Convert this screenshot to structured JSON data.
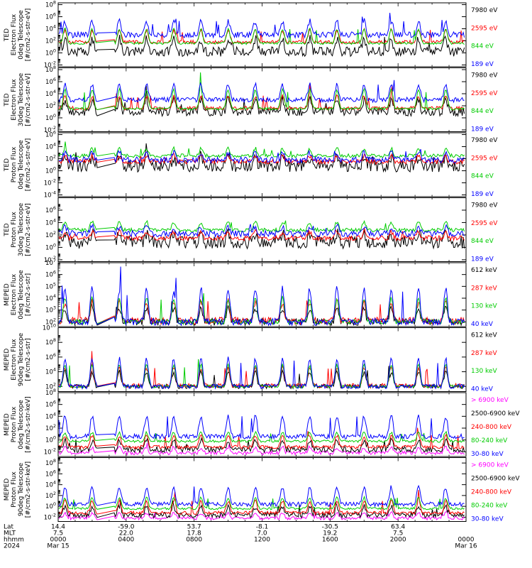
{
  "chart_data": [
    {
      "type": "line",
      "ylabel_lines": [
        "TED",
        "Electron Flux",
        "0deg Telescope",
        "[#/cm2-s-str-eV]"
      ],
      "yscale": "log",
      "ytick_exponents": [
        -2,
        0,
        2,
        4,
        6,
        8
      ],
      "ylim_exp": [
        -2.3,
        8.3
      ],
      "series": [
        {
          "name": "7980 eV",
          "color": "#000000",
          "base": 0.2,
          "amp": 2.2,
          "noise": 0.8
        },
        {
          "name": "2595 eV",
          "color": "#ff0000",
          "base": 1.8,
          "amp": 2.0,
          "noise": 0.3
        },
        {
          "name": "844 eV",
          "color": "#00cc00",
          "base": 1.6,
          "amp": 2.4,
          "noise": 0.2
        },
        {
          "name": "189 eV",
          "color": "#0000ff",
          "base": 3.0,
          "amp": 2.3,
          "noise": 0.5
        }
      ]
    },
    {
      "type": "line",
      "ylabel_lines": [
        "TED",
        "Electron Flux",
        "30deg Telescope",
        "[#/cm2-s-str-eV]"
      ],
      "yscale": "log",
      "ytick_exponents": [
        -2,
        0,
        2,
        4,
        6,
        8
      ],
      "ylim_exp": [
        -2.3,
        8.3
      ],
      "series": [
        {
          "name": "7980 eV",
          "color": "#000000",
          "base": 1.0,
          "amp": 2.0,
          "noise": 0.7
        },
        {
          "name": "2595 eV",
          "color": "#ff0000",
          "base": 1.6,
          "amp": 2.0,
          "noise": 0.3
        },
        {
          "name": "844 eV",
          "color": "#00cc00",
          "base": 1.5,
          "amp": 3.2,
          "noise": 0.2
        },
        {
          "name": "189 eV",
          "color": "#0000ff",
          "base": 3.0,
          "amp": 2.5,
          "noise": 0.4
        }
      ]
    },
    {
      "type": "line",
      "ylabel_lines": [
        "TED",
        "Proton Flux",
        "0deg Telescope",
        "[#/cm2-s-str-eV]"
      ],
      "yscale": "log",
      "ytick_exponents": [
        -4,
        -2,
        0,
        2,
        4,
        6
      ],
      "ylim_exp": [
        -4.3,
        6.3
      ],
      "series": [
        {
          "name": "7980 eV",
          "color": "#000000",
          "base": 0.8,
          "amp": 1.5,
          "noise": 1.0
        },
        {
          "name": "2595 eV",
          "color": "#ff0000",
          "base": 1.5,
          "amp": 1.0,
          "noise": 0.4
        },
        {
          "name": "844 eV",
          "color": "#00cc00",
          "base": 2.5,
          "amp": 1.2,
          "noise": 0.3
        },
        {
          "name": "189 eV",
          "color": "#0000ff",
          "base": 1.8,
          "amp": 1.2,
          "noise": 0.5
        }
      ]
    },
    {
      "type": "line",
      "ylabel_lines": [
        "TED",
        "Proton Flux",
        "30deg Telescope",
        "[#/cm2-s-str-eV]"
      ],
      "yscale": "log",
      "ytick_exponents": [
        -2,
        0,
        2,
        4,
        6
      ],
      "ylim_exp": [
        -2.3,
        8.0
      ],
      "series": [
        {
          "name": "7980 eV",
          "color": "#000000",
          "base": 0.8,
          "amp": 1.5,
          "noise": 1.0
        },
        {
          "name": "2595 eV",
          "color": "#ff0000",
          "base": 1.5,
          "amp": 1.0,
          "noise": 0.4
        },
        {
          "name": "844 eV",
          "color": "#00cc00",
          "base": 2.8,
          "amp": 1.3,
          "noise": 0.3
        },
        {
          "name": "189 eV",
          "color": "#0000ff",
          "base": 2.2,
          "amp": 1.2,
          "noise": 0.5
        }
      ]
    },
    {
      "type": "line",
      "ylabel_lines": [
        "MEPED",
        "Electron Flux",
        "0deg Telescope",
        "[#/cm2-s-str]"
      ],
      "yscale": "log",
      "ytick_exponents": [
        2,
        3,
        4,
        5,
        6,
        7
      ],
      "ylim_exp": [
        1.6,
        7.0
      ],
      "series": [
        {
          "name": "612 keV",
          "color": "#000000",
          "base": 2.0,
          "amp": 1.2,
          "noise": 0.3
        },
        {
          "name": "287 keV",
          "color": "#ff0000",
          "base": 2.1,
          "amp": 1.6,
          "noise": 0.3
        },
        {
          "name": "130 keV",
          "color": "#00cc00",
          "base": 2.0,
          "amp": 2.0,
          "noise": 0.2
        },
        {
          "name": "40 keV",
          "color": "#0000ff",
          "base": 2.0,
          "amp": 2.8,
          "noise": 0.3
        }
      ]
    },
    {
      "type": "line",
      "ylabel_lines": [
        "MEPED",
        "Electron Flux",
        "90deg Telescope",
        "[#/cm2-s-str]"
      ],
      "yscale": "log",
      "ytick_exponents": [
        2,
        4,
        6,
        8,
        10
      ],
      "ylim_exp": [
        1.3,
        10.0
      ],
      "series": [
        {
          "name": "612 keV",
          "color": "#000000",
          "base": 2.0,
          "amp": 2.0,
          "noise": 0.3
        },
        {
          "name": "287 keV",
          "color": "#ff0000",
          "base": 2.1,
          "amp": 2.5,
          "noise": 0.3
        },
        {
          "name": "130 keV",
          "color": "#00cc00",
          "base": 2.0,
          "amp": 3.0,
          "noise": 0.2
        },
        {
          "name": "40 keV",
          "color": "#0000ff",
          "base": 2.0,
          "amp": 3.8,
          "noise": 0.3
        }
      ]
    },
    {
      "type": "line",
      "ylabel_lines": [
        "MEPED",
        "Proton Flux",
        "0deg Telescope",
        "[#/cm2-s-str-keV]"
      ],
      "yscale": "log",
      "ytick_exponents": [
        -2,
        0,
        2,
        4,
        6,
        8
      ],
      "ylim_exp": [
        -2.8,
        8.0
      ],
      "series": [
        {
          "name": "> 6900 keV",
          "color": "#ff00ff",
          "base": -2.2,
          "amp": 1.0,
          "noise": 0.3
        },
        {
          "name": "2500-6900 keV",
          "color": "#000000",
          "base": -1.6,
          "amp": 1.5,
          "noise": 0.5
        },
        {
          "name": "240-800 keV",
          "color": "#ff0000",
          "base": -1.2,
          "amp": 2.0,
          "noise": 0.3
        },
        {
          "name": "80-240 keV",
          "color": "#00cc00",
          "base": -0.2,
          "amp": 1.5,
          "noise": 0.2
        },
        {
          "name": "30-80 keV",
          "color": "#0000ff",
          "base": 0.6,
          "amp": 3.5,
          "noise": 0.4
        }
      ]
    },
    {
      "type": "line",
      "ylabel_lines": [
        "MEPED",
        "Proton Flux",
        "90deg Telescope",
        "[#/cm2-s-str-keV]"
      ],
      "yscale": "log",
      "ytick_exponents": [
        -2,
        0,
        2,
        4,
        6,
        8
      ],
      "ylim_exp": [
        -2.8,
        9.0
      ],
      "series": [
        {
          "name": "> 6900 keV",
          "color": "#ff00ff",
          "base": -2.2,
          "amp": 1.0,
          "noise": 0.3
        },
        {
          "name": "2500-6900 keV",
          "color": "#000000",
          "base": -1.6,
          "amp": 1.5,
          "noise": 0.5
        },
        {
          "name": "240-800 keV",
          "color": "#ff0000",
          "base": -1.2,
          "amp": 2.2,
          "noise": 0.3
        },
        {
          "name": "80-240 keV",
          "color": "#00cc00",
          "base": -0.4,
          "amp": 2.0,
          "noise": 0.2
        },
        {
          "name": "30-80 keV",
          "color": "#0000ff",
          "base": 0.4,
          "amp": 3.2,
          "noise": 0.4
        }
      ]
    }
  ],
  "time_axis": {
    "row_labels": [
      "Lat",
      "MLT",
      "hhmm",
      "2024"
    ],
    "ticks": [
      {
        "lat": "14.4",
        "mlt": "7.5",
        "hhmm": "0000",
        "date": "Mar 15"
      },
      {
        "lat": "-59.0",
        "mlt": "22.0",
        "hhmm": "0400",
        "date": ""
      },
      {
        "lat": "53.7",
        "mlt": "17.8",
        "hhmm": "0800",
        "date": ""
      },
      {
        "lat": "-8.1",
        "mlt": "7.0",
        "hhmm": "1200",
        "date": ""
      },
      {
        "lat": "-30.5",
        "mlt": "19.2",
        "hhmm": "1600",
        "date": ""
      },
      {
        "lat": "63.4",
        "mlt": "7.5",
        "hhmm": "2000",
        "date": ""
      },
      {
        "lat": "",
        "mlt": "",
        "hhmm": "0000",
        "date": "Mar 16"
      }
    ],
    "span_hours": 24,
    "data_gap_hours": [
      2.3,
      3.3
    ]
  }
}
